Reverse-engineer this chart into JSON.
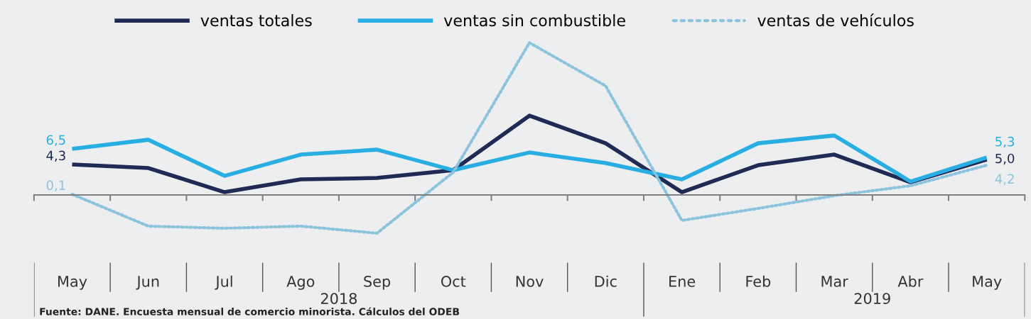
{
  "chart_data": {
    "type": "line",
    "categories": [
      "May",
      "Jun",
      "Jul",
      "Ago",
      "Sep",
      "Oct",
      "Nov",
      "Dic",
      "Ene",
      "Feb",
      "Mar",
      "Abr",
      "May"
    ],
    "series": [
      {
        "name": "ventas totales",
        "color": "#1f2a55",
        "values": [
          4.3,
          3.8,
          0.4,
          2.2,
          2.4,
          3.5,
          11.2,
          7.3,
          0.4,
          4.2,
          5.7,
          1.8,
          5.0
        ],
        "value_labels": [
          "4,3",
          null,
          null,
          null,
          null,
          null,
          null,
          null,
          null,
          null,
          null,
          null,
          "5,0"
        ]
      },
      {
        "name": "ventas sin combustible",
        "color": "#29aee3",
        "values": [
          6.5,
          7.8,
          2.7,
          5.7,
          6.4,
          3.5,
          6.0,
          4.5,
          2.2,
          7.3,
          8.4,
          1.9,
          5.3
        ],
        "value_labels": [
          "6,5",
          null,
          null,
          null,
          null,
          null,
          null,
          null,
          null,
          null,
          null,
          null,
          "5,3"
        ]
      },
      {
        "name": "ventas de vehículos",
        "color": "#8cc3dc",
        "line_style": "dotted",
        "values": [
          0.1,
          -4.4,
          -4.7,
          -4.4,
          -5.4,
          3.2,
          21.5,
          15.4,
          -3.6,
          -1.9,
          -0.1,
          1.3,
          4.2
        ],
        "value_labels": [
          "0,1",
          null,
          null,
          null,
          null,
          null,
          null,
          null,
          null,
          null,
          null,
          null,
          "4,2"
        ]
      }
    ],
    "tick_labels": "x",
    "grid": false,
    "legend": "top",
    "annotations": [
      "Fuente: DANE. Encuesta mensual de comercio minorista. Cálculos del ODEB",
      "2018",
      "2019"
    ]
  }
}
